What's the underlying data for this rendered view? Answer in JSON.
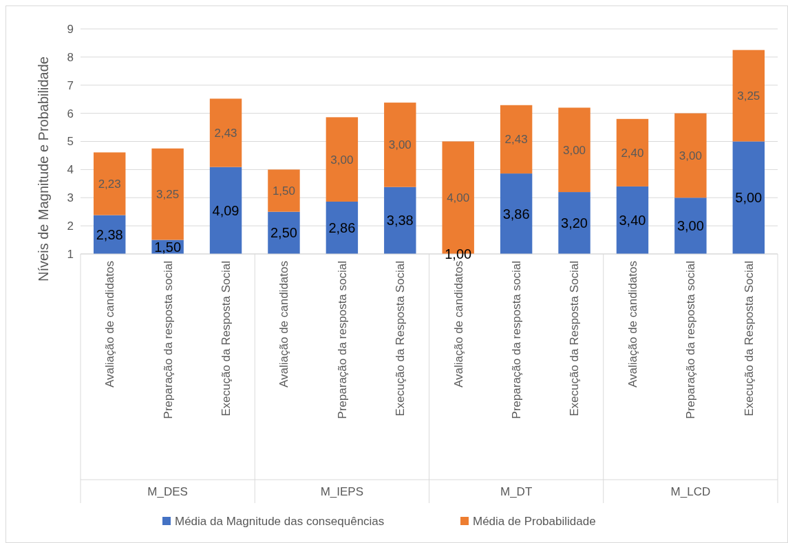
{
  "chart_data": {
    "type": "bar",
    "stacked": true,
    "ylabel": "Níveis de Magnitude e Probabilidade",
    "categories": [
      "Avaliação de candidatos",
      "Preparação da resposta social",
      "Execução da Resposta Social",
      "Avaliação de candidatos",
      "Preparação da resposta social",
      "Execução da Resposta Social",
      "Avaliação de candidatos",
      "Preparação da resposta social",
      "Execução da Resposta Social",
      "Avaliação de candidatos",
      "Preparação da resposta social",
      "Execução da Resposta Social"
    ],
    "annotations": [
      "M_DES",
      "M_IEPS",
      "M_DT",
      "M_LCD"
    ],
    "series": [
      {
        "name": "Média da Magnitude das consequências",
        "color": "#4472c4",
        "values": [
          2.38,
          1.5,
          4.09,
          2.5,
          2.86,
          3.38,
          1.0,
          3.86,
          3.2,
          3.4,
          3.0,
          5.0
        ],
        "value_labels": [
          "2,38",
          "1,50",
          "4,09",
          "2,50",
          "2,86",
          "3,38",
          "1,00",
          "3,86",
          "3,20",
          "3,40",
          "3,00",
          "5,00"
        ]
      },
      {
        "name": "Média de Probabilidade",
        "color": "#ed7d31",
        "values": [
          2.23,
          3.25,
          2.43,
          1.5,
          3.0,
          3.0,
          4.0,
          2.43,
          3.0,
          2.4,
          3.0,
          3.25
        ],
        "value_labels": [
          "2,23",
          "3,25",
          "2,43",
          "1,50",
          "3,00",
          "3,00",
          "4,00",
          "2,43",
          "3,00",
          "2,40",
          "3,00",
          "3,25"
        ]
      }
    ],
    "ylim": [
      1,
      9
    ],
    "yticks": [
      1,
      2,
      3,
      4,
      5,
      6,
      7,
      8,
      9
    ],
    "grid": "y",
    "legend": "bottom"
  }
}
